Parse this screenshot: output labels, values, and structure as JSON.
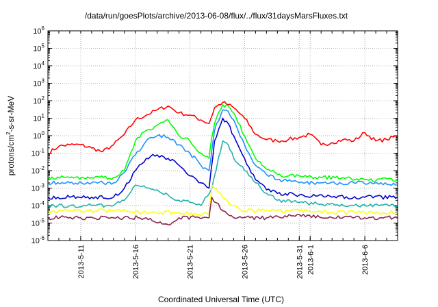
{
  "chart_data": {
    "type": "line",
    "title": "/data/run/goesPlots/archive/2013-06-08/flux/../flux/31daysMarsFluxes.txt",
    "xlabel": "Coordinated Universal Time (UTC)",
    "ylabel": "protons/cm2-s-sr-MeV",
    "y_scale": "log",
    "ylim": [
      1e-06,
      1000000.0
    ],
    "xlim": [
      "2013-05-08T00:00",
      "2013-06-09T00:00"
    ],
    "grid": true,
    "y_ticks": [
      {
        "base": "10",
        "exp": "-6"
      },
      {
        "base": "10",
        "exp": "-5"
      },
      {
        "base": "10",
        "exp": "-4"
      },
      {
        "base": "10",
        "exp": "-3"
      },
      {
        "base": "10",
        "exp": "-2"
      },
      {
        "base": "10",
        "exp": "-1"
      },
      {
        "base": "10",
        "exp": "0"
      },
      {
        "base": "10",
        "exp": "1"
      },
      {
        "base": "10",
        "exp": "2"
      },
      {
        "base": "10",
        "exp": "3"
      },
      {
        "base": "10",
        "exp": "4"
      },
      {
        "base": "10",
        "exp": "5"
      },
      {
        "base": "10",
        "exp": "6"
      }
    ],
    "x_ticks": [
      {
        "label": "2013-5-11",
        "date": "2013-05-11"
      },
      {
        "label": "2013-5-16",
        "date": "2013-05-16"
      },
      {
        "label": "2013-5-21",
        "date": "2013-05-21"
      },
      {
        "label": "2013-5-26",
        "date": "2013-05-26"
      },
      {
        "label": "2013-5-31",
        "date": "2013-05-31"
      },
      {
        "label": "2013-6-1",
        "date": "2013-06-01"
      },
      {
        "label": "2013-6-6",
        "date": "2013-06-06"
      }
    ],
    "x_tick_marks": [
      "2013-05-09",
      "2013-05-10",
      "2013-05-11",
      "2013-05-12",
      "2013-05-13",
      "2013-05-14",
      "2013-05-15",
      "2013-05-16",
      "2013-05-17",
      "2013-05-18",
      "2013-05-19",
      "2013-05-20",
      "2013-05-21",
      "2013-05-22",
      "2013-05-23",
      "2013-05-24",
      "2013-05-25",
      "2013-05-26",
      "2013-05-27",
      "2013-05-28",
      "2013-05-29",
      "2013-05-30",
      "2013-05-31",
      "2013-06-01",
      "2013-06-02",
      "2013-06-03",
      "2013-06-04",
      "2013-06-05",
      "2013-06-06",
      "2013-06-07",
      "2013-06-08"
    ],
    "series": [
      {
        "color": "#ff0000",
        "points": [
          [
            "2013-05-08T00:00",
            0.1
          ],
          [
            "2013-05-09T00:00",
            0.25
          ],
          [
            "2013-05-10T00:00",
            0.3
          ],
          [
            "2013-05-11T00:00",
            0.3
          ],
          [
            "2013-05-12T00:00",
            0.2
          ],
          [
            "2013-05-13T00:00",
            0.12
          ],
          [
            "2013-05-14T00:00",
            0.3
          ],
          [
            "2013-05-15T00:00",
            1.2
          ],
          [
            "2013-05-16T00:00",
            8
          ],
          [
            "2013-05-17T00:00",
            15
          ],
          [
            "2013-05-18T00:00",
            30
          ],
          [
            "2013-05-19T00:00",
            50
          ],
          [
            "2013-05-20T00:00",
            20
          ],
          [
            "2013-05-21T00:00",
            15
          ],
          [
            "2013-05-22T00:00",
            8
          ],
          [
            "2013-05-22T18:00",
            5
          ],
          [
            "2013-05-23T06:00",
            40
          ],
          [
            "2013-05-24T00:00",
            80
          ],
          [
            "2013-05-24T12:00",
            60
          ],
          [
            "2013-05-25T00:00",
            40
          ],
          [
            "2013-05-26T00:00",
            10
          ],
          [
            "2013-05-27T00:00",
            1.2
          ],
          [
            "2013-05-28T00:00",
            0.6
          ],
          [
            "2013-05-29T00:00",
            0.5
          ],
          [
            "2013-05-30T00:00",
            0.6
          ],
          [
            "2013-05-31T00:00",
            0.8
          ],
          [
            "2013-06-01T00:00",
            1.2
          ],
          [
            "2013-06-02T00:00",
            0.3
          ],
          [
            "2013-06-03T00:00",
            0.4
          ],
          [
            "2013-06-04T00:00",
            0.6
          ],
          [
            "2013-06-05T00:00",
            0.5
          ],
          [
            "2013-06-06T00:00",
            1.5
          ],
          [
            "2013-06-07T00:00",
            0.5
          ],
          [
            "2013-06-08T00:00",
            0.6
          ],
          [
            "2013-06-09T00:00",
            1.0
          ]
        ]
      },
      {
        "color": "#00ff00",
        "points": [
          [
            "2013-05-08T00:00",
            0.004
          ],
          [
            "2013-05-10T00:00",
            0.004
          ],
          [
            "2013-05-12T00:00",
            0.004
          ],
          [
            "2013-05-14T00:00",
            0.004
          ],
          [
            "2013-05-15T00:00",
            0.01
          ],
          [
            "2013-05-16T00:00",
            0.5
          ],
          [
            "2013-05-17T00:00",
            2
          ],
          [
            "2013-05-18T00:00",
            4
          ],
          [
            "2013-05-19T00:00",
            8
          ],
          [
            "2013-05-20T00:00",
            1
          ],
          [
            "2013-05-21T00:00",
            0.5
          ],
          [
            "2013-05-22T00:00",
            0.1
          ],
          [
            "2013-05-22T18:00",
            0.05
          ],
          [
            "2013-05-23T00:00",
            0.8
          ],
          [
            "2013-05-23T06:00",
            5
          ],
          [
            "2013-05-24T00:00",
            60
          ],
          [
            "2013-05-24T12:00",
            50
          ],
          [
            "2013-05-25T00:00",
            20
          ],
          [
            "2013-05-26T00:00",
            1
          ],
          [
            "2013-05-27T00:00",
            0.05
          ],
          [
            "2013-05-28T00:00",
            0.012
          ],
          [
            "2013-05-29T00:00",
            0.006
          ],
          [
            "2013-05-30T00:00",
            0.005
          ],
          [
            "2013-05-31T00:00",
            0.005
          ],
          [
            "2013-06-02T00:00",
            0.004
          ],
          [
            "2013-06-04T00:00",
            0.004
          ],
          [
            "2013-06-06T00:00",
            0.003
          ],
          [
            "2013-06-09T00:00",
            0.003
          ]
        ]
      },
      {
        "color": "#1e90ff",
        "points": [
          [
            "2013-05-08T00:00",
            0.002
          ],
          [
            "2013-05-10T00:00",
            0.002
          ],
          [
            "2013-05-12T00:00",
            0.002
          ],
          [
            "2013-05-14T00:00",
            0.002
          ],
          [
            "2013-05-15T00:00",
            0.008
          ],
          [
            "2013-05-16T00:00",
            0.08
          ],
          [
            "2013-05-17T00:00",
            0.5
          ],
          [
            "2013-05-18T00:00",
            1
          ],
          [
            "2013-05-19T00:00",
            0.8
          ],
          [
            "2013-05-20T00:00",
            0.3
          ],
          [
            "2013-05-21T00:00",
            0.1
          ],
          [
            "2013-05-22T00:00",
            0.02
          ],
          [
            "2013-05-22T18:00",
            0.01
          ],
          [
            "2013-05-23T06:00",
            2
          ],
          [
            "2013-05-24T00:00",
            30
          ],
          [
            "2013-05-24T12:00",
            25
          ],
          [
            "2013-05-25T00:00",
            8
          ],
          [
            "2013-05-26T00:00",
            0.3
          ],
          [
            "2013-05-27T00:00",
            0.02
          ],
          [
            "2013-05-28T00:00",
            0.006
          ],
          [
            "2013-05-29T00:00",
            0.003
          ],
          [
            "2013-05-31T00:00",
            0.002
          ],
          [
            "2013-06-02T00:00",
            0.002
          ],
          [
            "2013-06-05T00:00",
            0.002
          ],
          [
            "2013-06-09T00:00",
            0.0015
          ]
        ]
      },
      {
        "color": "#0000cd",
        "points": [
          [
            "2013-05-08T00:00",
            0.0003
          ],
          [
            "2013-05-10T00:00",
            0.0003
          ],
          [
            "2013-05-12T00:00",
            0.0003
          ],
          [
            "2013-05-14T00:00",
            0.0003
          ],
          [
            "2013-05-15T00:00",
            0.001
          ],
          [
            "2013-05-16T00:00",
            0.01
          ],
          [
            "2013-05-17T00:00",
            0.05
          ],
          [
            "2013-05-18T00:00",
            0.08
          ],
          [
            "2013-05-19T00:00",
            0.05
          ],
          [
            "2013-05-20T00:00",
            0.02
          ],
          [
            "2013-05-21T00:00",
            0.005
          ],
          [
            "2013-05-22T00:00",
            0.002
          ],
          [
            "2013-05-22T18:00",
            0.001
          ],
          [
            "2013-05-23T06:00",
            0.5
          ],
          [
            "2013-05-24T00:00",
            10
          ],
          [
            "2013-05-24T12:00",
            5
          ],
          [
            "2013-05-25T00:00",
            1
          ],
          [
            "2013-05-26T00:00",
            0.05
          ],
          [
            "2013-05-27T00:00",
            0.003
          ],
          [
            "2013-05-28T00:00",
            0.0008
          ],
          [
            "2013-05-29T00:00",
            0.0005
          ],
          [
            "2013-05-31T00:00",
            0.0004
          ],
          [
            "2013-06-03T00:00",
            0.0003
          ],
          [
            "2013-06-06T00:00",
            0.0003
          ],
          [
            "2013-06-09T00:00",
            0.0003
          ]
        ]
      },
      {
        "color": "#20b2aa",
        "points": [
          [
            "2013-05-08T00:00",
            0.0001
          ],
          [
            "2013-05-10T00:00",
            0.0001
          ],
          [
            "2013-05-12T00:00",
            0.0001
          ],
          [
            "2013-05-14T00:00",
            0.0001
          ],
          [
            "2013-05-15T00:00",
            0.0002
          ],
          [
            "2013-05-16T00:00",
            0.0015
          ],
          [
            "2013-05-17T00:00",
            0.001
          ],
          [
            "2013-05-18T00:00",
            0.0008
          ],
          [
            "2013-05-19T00:00",
            0.0004
          ],
          [
            "2013-05-20T00:00",
            0.0002
          ],
          [
            "2013-05-21T00:00",
            0.00015
          ],
          [
            "2013-05-22T00:00",
            0.0001
          ],
          [
            "2013-05-23T00:00",
            0.001
          ],
          [
            "2013-05-24T00:00",
            0.5
          ],
          [
            "2013-05-24T12:00",
            0.3
          ],
          [
            "2013-05-25T00:00",
            0.05
          ],
          [
            "2013-05-26T00:00",
            0.01
          ],
          [
            "2013-05-27T00:00",
            0.002
          ],
          [
            "2013-05-28T00:00",
            0.0005
          ],
          [
            "2013-05-29T00:00",
            0.0002
          ],
          [
            "2013-05-31T00:00",
            0.00015
          ],
          [
            "2013-06-02T00:00",
            0.00012
          ],
          [
            "2013-06-05T00:00",
            0.0001
          ],
          [
            "2013-06-09T00:00",
            0.0001
          ]
        ]
      },
      {
        "color": "#ffff00",
        "points": [
          [
            "2013-05-08T00:00",
            5e-05
          ],
          [
            "2013-05-11T00:00",
            5e-05
          ],
          [
            "2013-05-14T00:00",
            5e-05
          ],
          [
            "2013-05-17T00:00",
            4e-05
          ],
          [
            "2013-05-20T00:00",
            4e-05
          ],
          [
            "2013-05-22T18:00",
            3e-05
          ],
          [
            "2013-05-23T00:00",
            0.0015
          ],
          [
            "2013-05-24T00:00",
            0.0003
          ],
          [
            "2013-05-25T00:00",
            0.0001
          ],
          [
            "2013-05-26T00:00",
            5e-05
          ],
          [
            "2013-05-28T00:00",
            5e-05
          ],
          [
            "2013-05-31T00:00",
            5e-05
          ],
          [
            "2013-06-03T00:00",
            4e-05
          ],
          [
            "2013-06-06T00:00",
            4e-05
          ],
          [
            "2013-06-09T00:00",
            4e-05
          ]
        ]
      },
      {
        "color": "#8b2252",
        "points": [
          [
            "2013-05-08T00:00",
            2e-05
          ],
          [
            "2013-05-11T00:00",
            2e-05
          ],
          [
            "2013-05-14T00:00",
            2e-05
          ],
          [
            "2013-05-17T00:00",
            2e-05
          ],
          [
            "2013-05-19T00:00",
            8e-06
          ],
          [
            "2013-05-20T00:00",
            2e-05
          ],
          [
            "2013-05-22T18:00",
            2e-05
          ],
          [
            "2013-05-23T00:00",
            0.0003
          ],
          [
            "2013-05-24T00:00",
            5e-05
          ],
          [
            "2013-05-25T00:00",
            2e-05
          ],
          [
            "2013-05-28T00:00",
            2e-05
          ],
          [
            "2013-05-31T00:00",
            3e-05
          ],
          [
            "2013-06-03T00:00",
            2e-05
          ],
          [
            "2013-06-06T00:00",
            2e-05
          ],
          [
            "2013-06-09T00:00",
            2e-05
          ]
        ]
      }
    ]
  }
}
